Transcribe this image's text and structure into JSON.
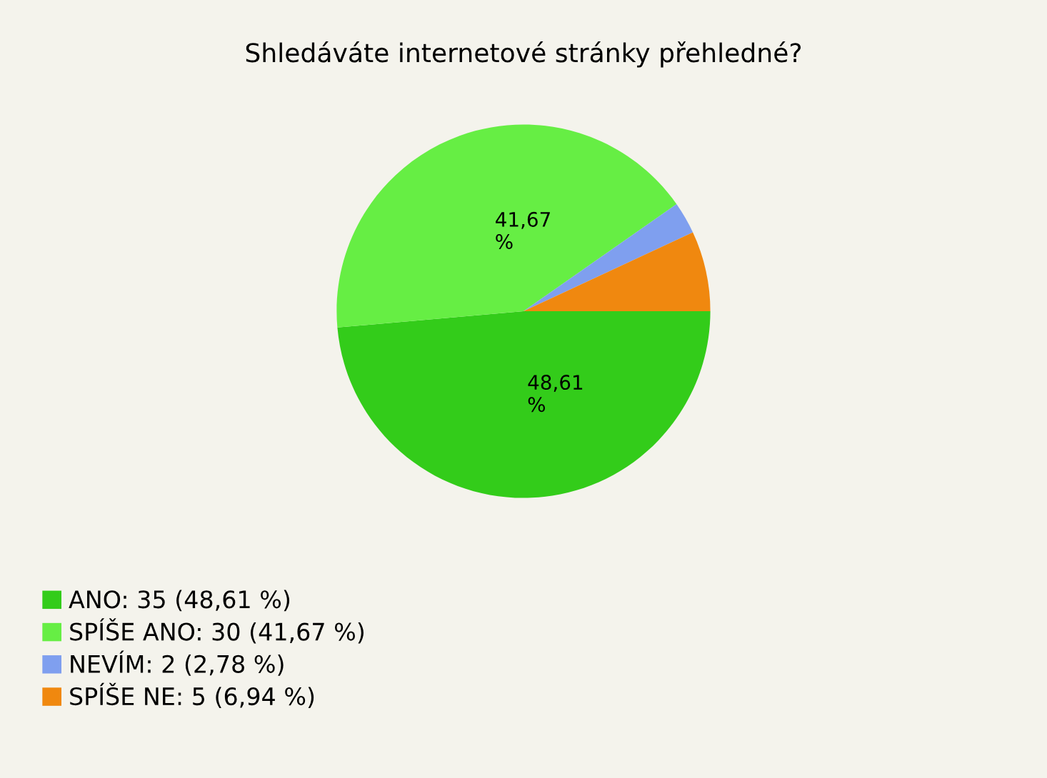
{
  "chart_data": {
    "type": "pie",
    "title": "Shledáváte internetové stránky přehledné?",
    "categories": [
      "ANO: 35 (48,61 %)",
      "SPÍŠE ANO: 30 (41,67 %)",
      "NEVÍM: 2 (2,78 %)",
      "SPÍŠE NE: 5 (6,94 %)"
    ],
    "values": [
      48.61,
      41.67,
      2.78,
      6.94
    ],
    "colors": [
      "#33cc1a",
      "#66ee44",
      "#7f9fef",
      "#f0880f"
    ],
    "value_labels": [
      "48,61\n%",
      "41,67\n%",
      null,
      null
    ],
    "legend": "bottom left"
  }
}
